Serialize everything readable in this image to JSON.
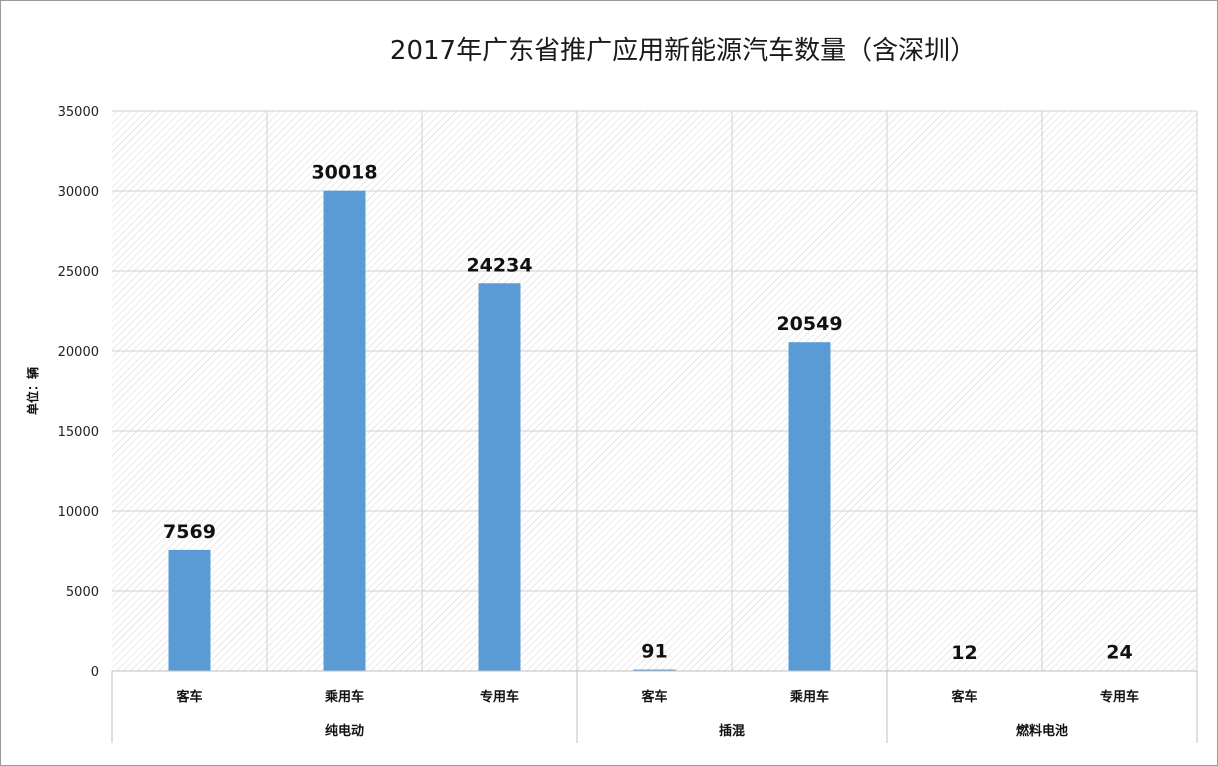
{
  "chart_data": {
    "type": "bar",
    "title": "2017年广东省推广应用新能源汽车数量（含深圳）",
    "ylabel": "单位：辆",
    "ylim": [
      0,
      35000
    ],
    "ytick_step": 5000,
    "yticks": [
      "0",
      "5000",
      "10000",
      "15000",
      "20000",
      "25000",
      "30000",
      "35000"
    ],
    "grid": true,
    "legend": "none",
    "bar_color": "#5B9BD5",
    "groups": [
      {
        "name": "纯电动",
        "categories": [
          "客车",
          "乘用车",
          "专用车"
        ],
        "values": [
          7569,
          30018,
          24234
        ]
      },
      {
        "name": "插混",
        "categories": [
          "客车",
          "乘用车"
        ],
        "values": [
          91,
          20549
        ]
      },
      {
        "name": "燃料电池",
        "categories": [
          "客车",
          "专用车"
        ],
        "values": [
          12,
          24
        ]
      }
    ]
  }
}
